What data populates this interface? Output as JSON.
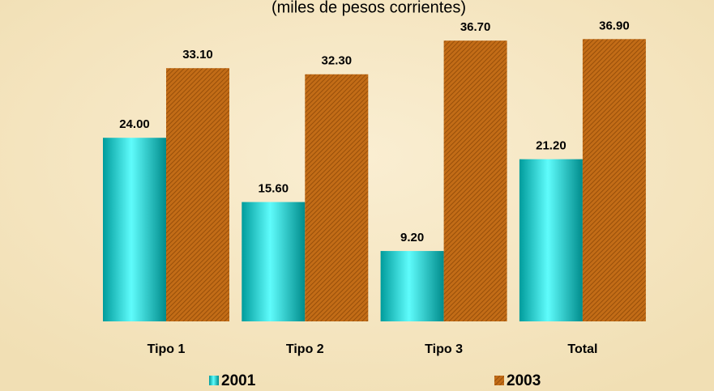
{
  "chart_data": {
    "type": "bar",
    "subtitle": "(miles de pesos corrientes)",
    "categories": [
      "Tipo 1",
      "Tipo 2",
      "Tipo 3",
      "Total"
    ],
    "series": [
      {
        "name": "2001",
        "color": "#00d8d8",
        "values": [
          24.0,
          15.6,
          9.2,
          21.2
        ],
        "value_labels": [
          "24.00",
          "15.60",
          "9.20",
          "21.20"
        ]
      },
      {
        "name": "2003",
        "color": "#b8620f",
        "values": [
          33.1,
          32.3,
          36.7,
          36.9
        ],
        "value_labels": [
          "33.10",
          "32.30",
          "36.70",
          "36.90"
        ]
      }
    ],
    "legend": "bottom"
  }
}
